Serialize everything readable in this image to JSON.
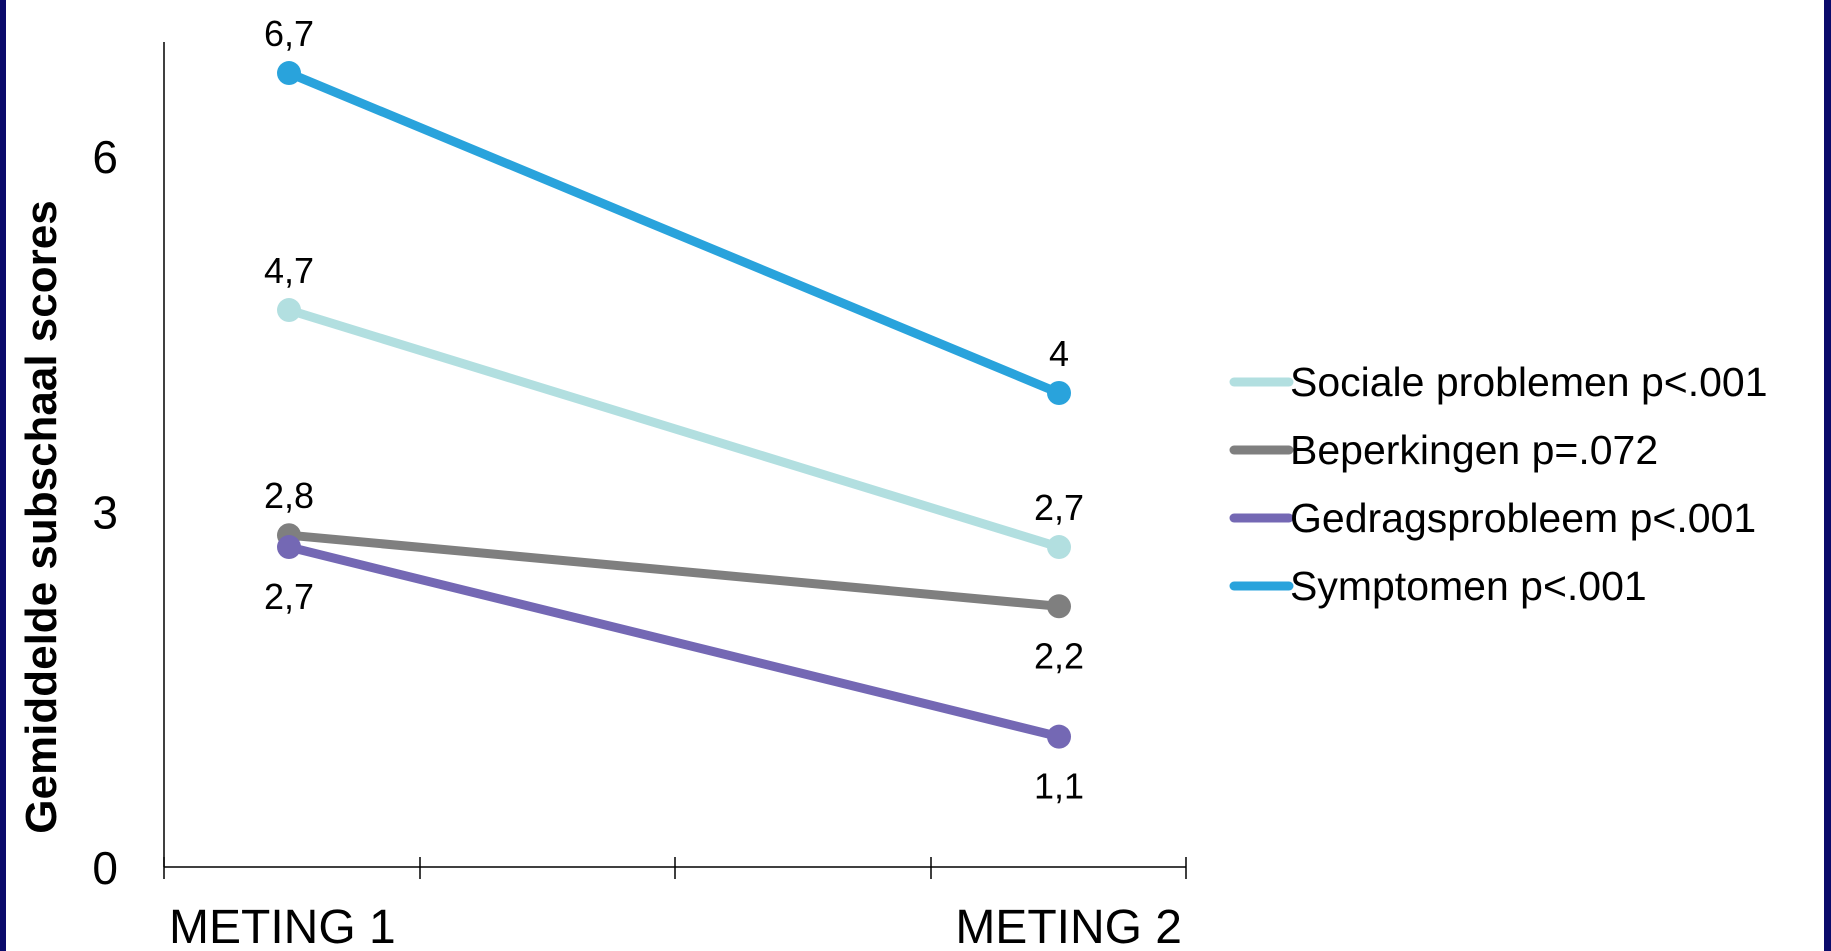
{
  "chart_data": {
    "type": "line",
    "ylabel": "Gemiddelde subschaal scores",
    "xlabel": "",
    "title": "",
    "categories": [
      "METING 1",
      "METING 2"
    ],
    "ylim": [
      0,
      7
    ],
    "yticks": [
      "0",
      "3",
      "6"
    ],
    "ytick_values": [
      0,
      3,
      6
    ],
    "legend_position": "right",
    "grid": false,
    "series": [
      {
        "name": "Sociale problemen p<.001",
        "color": "#b2dfe0",
        "values": [
          4.7,
          2.7
        ],
        "labels": [
          "4,7",
          "2,7"
        ],
        "label_side": [
          "above",
          "above"
        ]
      },
      {
        "name": "Beperkingen p=.072",
        "color": "#7f7f7f",
        "values": [
          2.8,
          2.2
        ],
        "labels": [
          "2,8",
          "2,2"
        ],
        "label_side": [
          "above",
          "below"
        ]
      },
      {
        "name": "Gedragsprobleem p<.001",
        "color": "#7468b4",
        "values": [
          2.7,
          1.1
        ],
        "labels": [
          "2,7",
          "1,1"
        ],
        "label_side": [
          "below",
          "below"
        ]
      },
      {
        "name": "Symptomen p<.001",
        "color": "#29a3dc",
        "values": [
          6.7,
          4.0
        ],
        "labels": [
          "6,7",
          "4"
        ],
        "label_side": [
          "above",
          "above"
        ]
      }
    ]
  }
}
